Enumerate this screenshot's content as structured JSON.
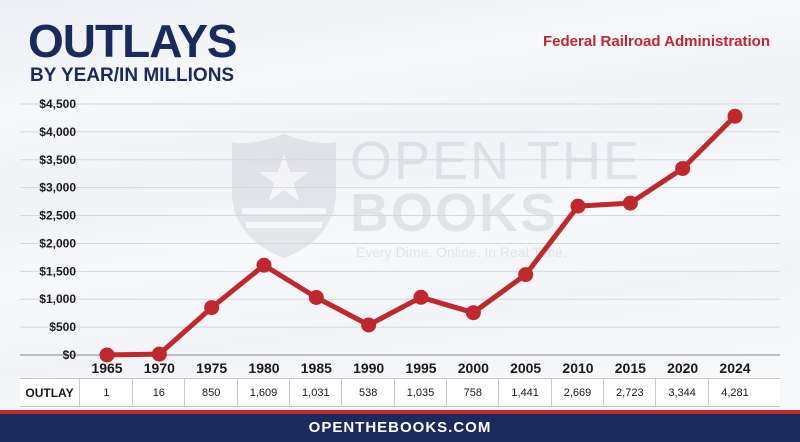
{
  "header": {
    "title": "OUTLAYS",
    "subtitle": "BY YEAR/IN MILLIONS",
    "agency": "Federal Railroad Administration"
  },
  "watermark": {
    "line1": "OPEN THE",
    "line2": "BOOKS",
    "tagline": "Every Dime. Online. In Real Time."
  },
  "table": {
    "row_label": "OUTLAY",
    "values": [
      "1",
      "16",
      "850",
      "1,609",
      "1,031",
      "538",
      "1,035",
      "758",
      "1,441",
      "2,669",
      "2,723",
      "3,344",
      "4,281"
    ]
  },
  "footer": {
    "site": "OPENTHEBOOKS.COM"
  },
  "colors": {
    "line": "#c0282d",
    "navy": "#1b2a5c",
    "accent_red": "#c0282d",
    "grid": "#d5d7dc"
  },
  "chart_data": {
    "type": "line",
    "title": "OUTLAYS",
    "subtitle": "BY YEAR/IN MILLIONS",
    "categories": [
      "1965",
      "1970",
      "1975",
      "1980",
      "1985",
      "1990",
      "1995",
      "2000",
      "2005",
      "2010",
      "2015",
      "2020",
      "2024"
    ],
    "series": [
      {
        "values": [
          1,
          16,
          850,
          1609,
          1031,
          538,
          1035,
          758,
          1441,
          2669,
          2723,
          3344,
          4281
        ]
      }
    ],
    "y_tick_labels": [
      "$0",
      "$500",
      "$1,000",
      "$1,500",
      "$2,000",
      "$2,500",
      "$3,000",
      "$3,500",
      "$4,000",
      "$4,500"
    ],
    "ylim": [
      0,
      4500
    ],
    "grid": true
  }
}
